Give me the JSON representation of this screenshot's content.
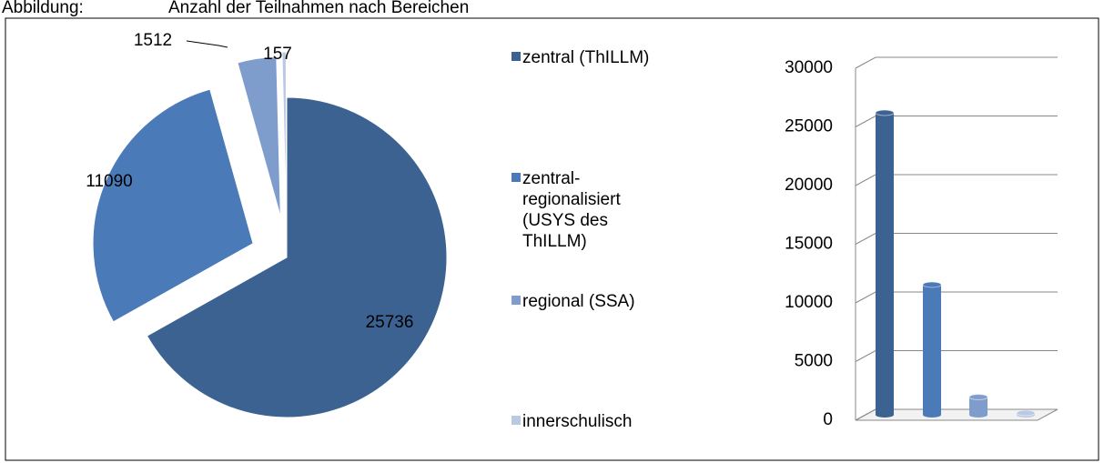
{
  "figure": {
    "label": "Abbildung:",
    "title": "Anzahl der Teilnahmen nach Bereichen"
  },
  "chart_data": [
    {
      "type": "pie",
      "categories": [
        "zentral (ThILLM)",
        "zentral-regionalisiert (USYS des ThILLM)",
        "regional (SSA)",
        "innerschulisch"
      ],
      "values": [
        25736,
        11090,
        1512,
        157
      ],
      "colors": [
        "#3c6291",
        "#4a7ab8",
        "#7f9dcc",
        "#b9c8e3"
      ]
    },
    {
      "type": "bar3d",
      "values": [
        25736,
        11090,
        1512,
        157
      ],
      "colors": [
        "#3c6291",
        "#4a7ab8",
        "#7f9dcc",
        "#b9c8e3"
      ],
      "ylim": [
        0,
        30000
      ],
      "yticks": [
        0,
        5000,
        10000,
        15000,
        20000,
        25000,
        30000
      ],
      "grid": true
    }
  ]
}
